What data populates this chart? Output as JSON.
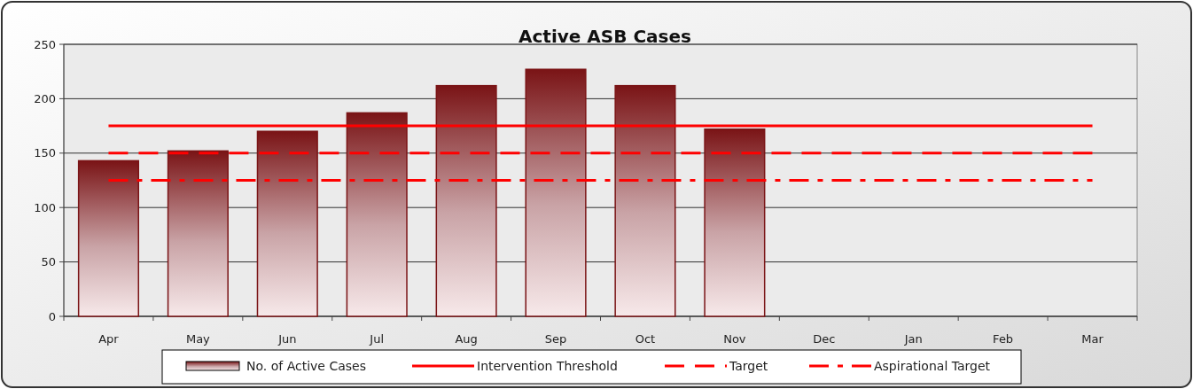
{
  "chart_data": {
    "type": "bar",
    "title": "Active ASB Cases",
    "categories": [
      "Apr",
      "May",
      "Jun",
      "Jul",
      "Aug",
      "Sep",
      "Oct",
      "Nov",
      "Dec",
      "Jan",
      "Feb",
      "Mar"
    ],
    "series": [
      {
        "name": "No. of Active Cases",
        "color": "#7a1416",
        "values": [
          143,
          152,
          170,
          187,
          212,
          227,
          212,
          172,
          null,
          null,
          null,
          null
        ]
      },
      {
        "name": "Intervention Threshold",
        "type": "line",
        "color": "#ff0000",
        "line_style": "solid",
        "values": [
          175,
          175,
          175,
          175,
          175,
          175,
          175,
          175,
          175,
          175,
          175,
          175
        ]
      },
      {
        "name": "Target",
        "type": "line",
        "color": "#ff0000",
        "line_style": "dashed",
        "values": [
          150,
          150,
          150,
          150,
          150,
          150,
          150,
          150,
          150,
          150,
          150,
          150
        ]
      },
      {
        "name": "Aspirational Target",
        "type": "line",
        "color": "#ff0000",
        "line_style": "dashdot",
        "values": [
          125,
          125,
          125,
          125,
          125,
          125,
          125,
          125,
          125,
          125,
          125,
          125
        ]
      }
    ],
    "ylim": [
      0,
      250
    ],
    "yticks": [
      0,
      50,
      100,
      150,
      200,
      250
    ],
    "grid": "y",
    "legend": "bottom",
    "marker": "none"
  }
}
